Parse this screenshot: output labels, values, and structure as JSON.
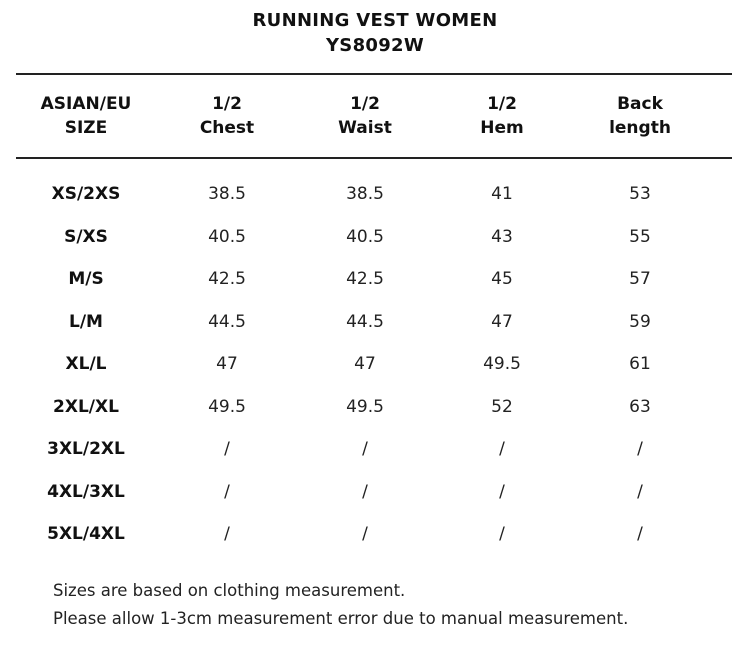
{
  "title": "RUNNING VEST WOMEN",
  "model": "YS8092W",
  "headers": {
    "size": [
      "ASIAN/EU",
      "SIZE"
    ],
    "chest": [
      "1/2",
      "Chest"
    ],
    "waist": [
      "1/2",
      "Waist"
    ],
    "hem": [
      "1/2",
      "Hem"
    ],
    "back": [
      "Back",
      "length"
    ]
  },
  "rows": [
    {
      "size": "XS/2XS",
      "chest": "38.5",
      "waist": "38.5",
      "hem": "41",
      "back": "53"
    },
    {
      "size": "S/XS",
      "chest": "40.5",
      "waist": "40.5",
      "hem": "43",
      "back": "55"
    },
    {
      "size": "M/S",
      "chest": "42.5",
      "waist": "42.5",
      "hem": "45",
      "back": "57"
    },
    {
      "size": "L/M",
      "chest": "44.5",
      "waist": "44.5",
      "hem": "47",
      "back": "59"
    },
    {
      "size": "XL/L",
      "chest": "47",
      "waist": "47",
      "hem": "49.5",
      "back": "61"
    },
    {
      "size": "2XL/XL",
      "chest": "49.5",
      "waist": "49.5",
      "hem": "52",
      "back": "63"
    },
    {
      "size": "3XL/2XL",
      "chest": "/",
      "waist": "/",
      "hem": "/",
      "back": "/"
    },
    {
      "size": "4XL/3XL",
      "chest": "/",
      "waist": "/",
      "hem": "/",
      "back": "/"
    },
    {
      "size": "5XL/4XL",
      "chest": "/",
      "waist": "/",
      "hem": "/",
      "back": "/"
    }
  ],
  "notes": [
    "Sizes are based on clothing measurement.",
    "Please allow 1-3cm measurement error due to manual measurement."
  ]
}
